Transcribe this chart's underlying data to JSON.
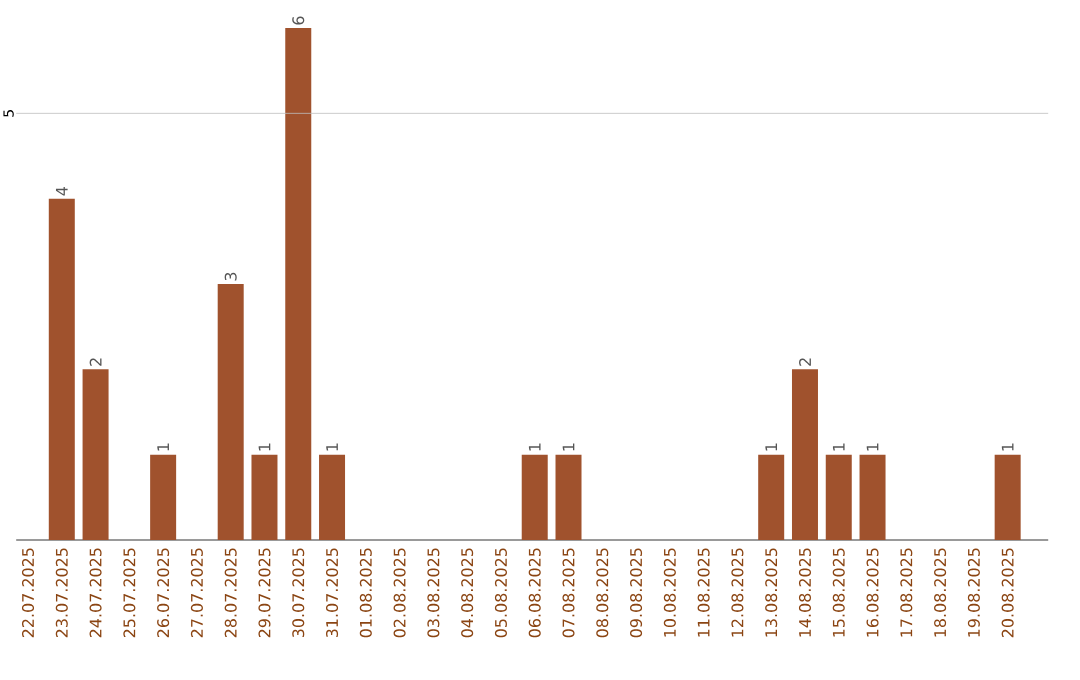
{
  "chart_data": {
    "type": "bar",
    "categories": [
      "22.07.2025",
      "23.07.2025",
      "24.07.2025",
      "25.07.2025",
      "26.07.2025",
      "27.07.2025",
      "28.07.2025",
      "29.07.2025",
      "30.07.2025",
      "31.07.2025",
      "01.08.2025",
      "02.08.2025",
      "03.08.2025",
      "04.08.2025",
      "05.08.2025",
      "06.08.2025",
      "07.08.2025",
      "08.08.2025",
      "09.08.2025",
      "10.08.2025",
      "11.08.2025",
      "12.08.2025",
      "13.08.2025",
      "14.08.2025",
      "15.08.2025",
      "16.08.2025",
      "17.08.2025",
      "18.08.2025",
      "19.08.2025",
      "20.08.2025"
    ],
    "values": [
      0,
      4,
      2,
      0,
      1,
      0,
      3,
      1,
      6,
      1,
      0,
      0,
      0,
      0,
      0,
      1,
      1,
      0,
      0,
      0,
      0,
      0,
      1,
      2,
      1,
      1,
      0,
      0,
      0,
      1
    ],
    "value_labels": [
      null,
      "4",
      "2",
      null,
      "1",
      null,
      "3",
      "1",
      "6",
      "1",
      null,
      null,
      null,
      null,
      null,
      "1",
      "1",
      null,
      null,
      null,
      null,
      null,
      "1",
      "2",
      "1",
      "1",
      null,
      null,
      null,
      "1"
    ],
    "color": "#a0522d",
    "ref_lines": [
      {
        "axis": "y",
        "value": 5,
        "label": "5"
      }
    ]
  }
}
